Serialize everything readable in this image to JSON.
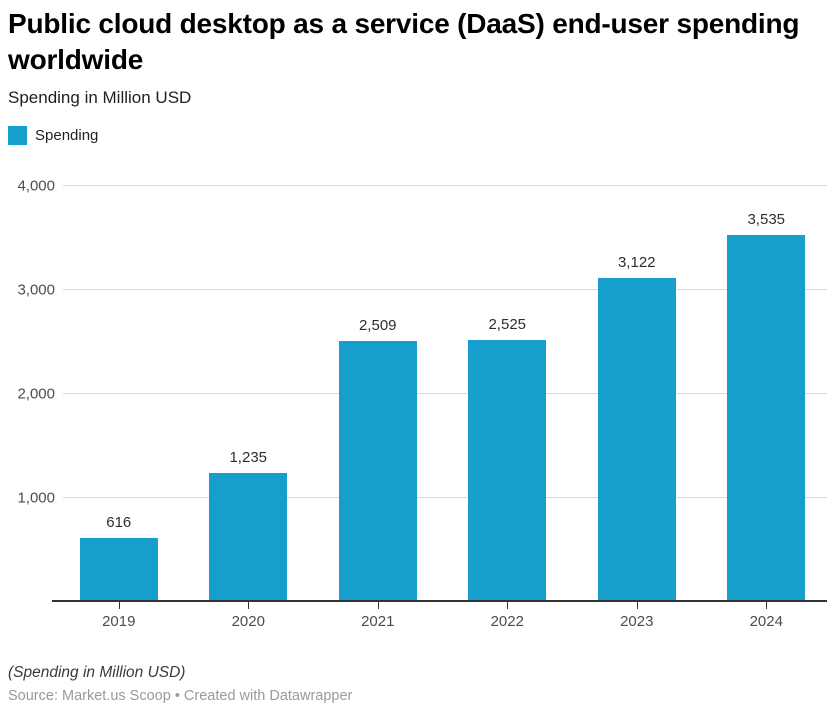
{
  "header": {
    "title": "Public cloud desktop as a service (DaaS) end-user spending worldwide",
    "subtitle": "Spending in Million USD"
  },
  "legend": {
    "label": "Spending",
    "swatch_color": "#189ecd"
  },
  "chart_data": {
    "type": "bar",
    "categories": [
      "2019",
      "2020",
      "2021",
      "2022",
      "2023",
      "2024"
    ],
    "values": [
      616,
      1235,
      2509,
      2525,
      3122,
      3535
    ],
    "series": [
      {
        "name": "Spending",
        "values": [
          616,
          1235,
          2509,
          2525,
          3122,
          3535
        ]
      }
    ],
    "title": "Public cloud desktop as a service (DaaS) end-user spending worldwide",
    "subtitle": "Spending in Million USD",
    "xlabel": "",
    "ylabel": "Spending in Million USD",
    "ylim": [
      0,
      4000
    ],
    "yticks": [
      0,
      1000,
      2000,
      3000,
      4000
    ],
    "grid": true,
    "legend_position": "top-left",
    "bar_color": "#189ecd",
    "data_labels": true
  },
  "footer": {
    "note": "(Spending in Million USD)",
    "source": "Source: Market.us Scoop • Created with Datawrapper"
  },
  "colors": {
    "bar": "#189ecd",
    "gridline": "#d9d9d9",
    "axis_line": "#333333",
    "axis_text": "#4d4d4d",
    "source_text": "#9a9a9a"
  }
}
